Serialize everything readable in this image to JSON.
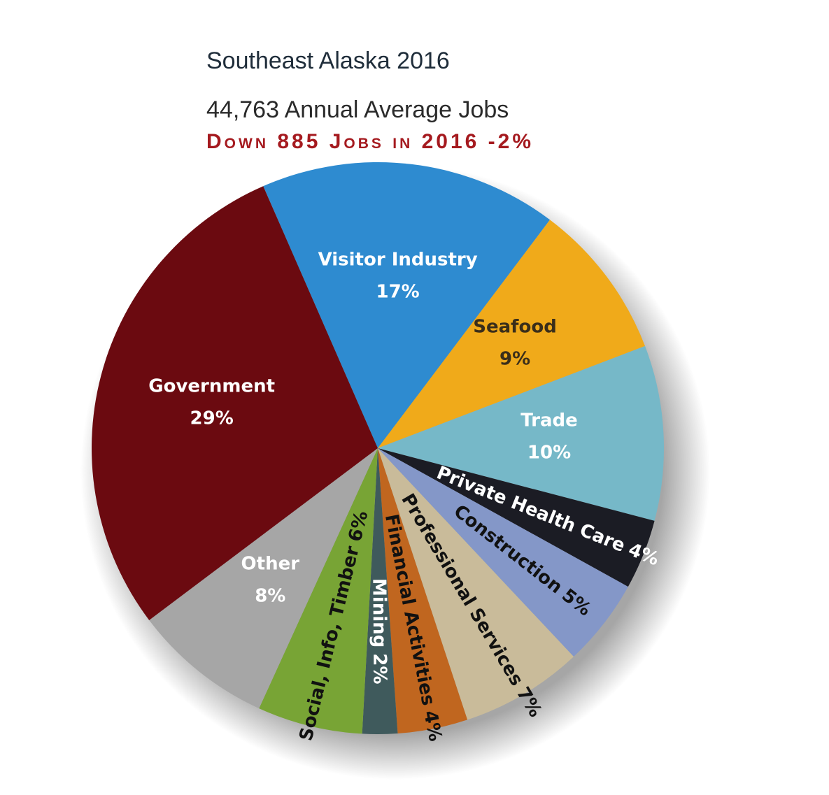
{
  "chart_data": {
    "type": "pie",
    "title": "Southeast Alaska 2016",
    "subtitle": "44,763 Annual Average Jobs",
    "annotation": "Down 885 Jobs in 2016 -2%",
    "categories": [
      "Visitor Industry",
      "Seafood",
      "Trade",
      "Private Health Care",
      "Construction",
      "Professional Services",
      "Financial Activities",
      "Mining",
      "Social, Info, Timber",
      "Other",
      "Government"
    ],
    "values": [
      17,
      9,
      10,
      4,
      5,
      7,
      4,
      2,
      6,
      8,
      29
    ],
    "value_labels": [
      "17%",
      "9%",
      "10%",
      "4%",
      "5%",
      "7%",
      "4%",
      "2%",
      "6%",
      "8%",
      "29%"
    ],
    "colors": [
      "#2e8bd0",
      "#f0aa1a",
      "#76b8c8",
      "#1b1c24",
      "#8497c8",
      "#c9bb9a",
      "#c0661f",
      "#3f5a5c",
      "#78a435",
      "#a6a6a6",
      "#6b0a10"
    ],
    "label_colors": [
      "#ffffff",
      "#3a2e1a",
      "#ffffff",
      "#ffffff",
      "#111111",
      "#111111",
      "#111111",
      "#ffffff",
      "#111111",
      "#ffffff",
      "#ffffff"
    ]
  }
}
